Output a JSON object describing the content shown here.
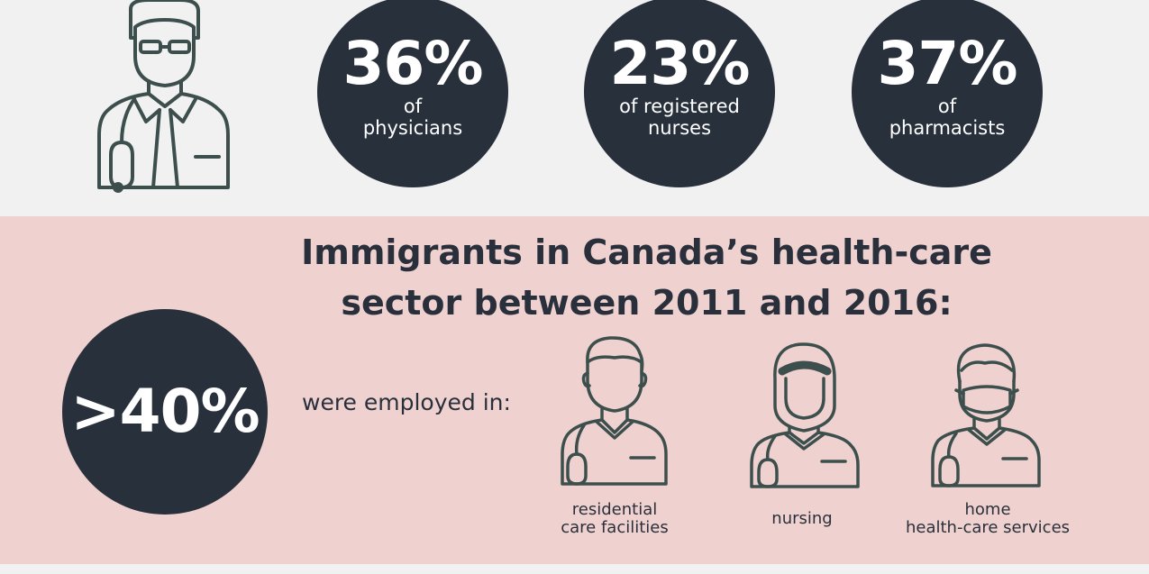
{
  "stats": [
    {
      "value": "36%",
      "caption_line1": "of",
      "caption_line2": "physicians"
    },
    {
      "value": "23%",
      "caption_line1": "of registered",
      "caption_line2": "nurses"
    },
    {
      "value": "37%",
      "caption_line1": "of",
      "caption_line2": "pharmacists"
    }
  ],
  "headline": {
    "line1": "Immigrants in Canada’s health-care",
    "line2": "sector between 2011 and 2016:"
  },
  "big_stat": {
    "value": ">40%"
  },
  "employed_text": "were employed in:",
  "categories": [
    {
      "line1": "residential",
      "line2": "care facilities",
      "icon": "male-health-worker-icon"
    },
    {
      "line1": "nursing",
      "line2": "",
      "icon": "hijab-nurse-icon"
    },
    {
      "line1": "home",
      "line2": "health-care services",
      "icon": "masked-health-worker-icon"
    }
  ],
  "top_icon": "doctor-icon",
  "colors": {
    "dark": "#28303c",
    "pink": "#efd2d0",
    "grey": "#f1f1f2",
    "icon_stroke": "#3d4f4d"
  }
}
